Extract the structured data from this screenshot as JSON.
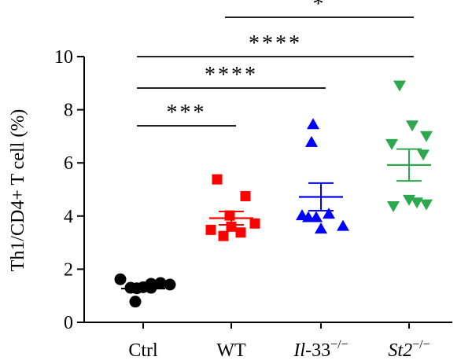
{
  "chart_data": {
    "type": "scatter",
    "ylabel": "Th1/CD4+ T cell (%)",
    "ylim": [
      0,
      10
    ],
    "yticks": [
      0,
      2,
      4,
      6,
      8,
      10
    ],
    "categories": [
      {
        "text": "Ctrl",
        "italic": "",
        "sup": ""
      },
      {
        "text": "WT",
        "italic": "",
        "sup": ""
      },
      {
        "text": "-33",
        "italic": "Il",
        "sup": "−/−"
      },
      {
        "text": "",
        "italic": "St2",
        "sup": "−/−"
      }
    ],
    "series": [
      {
        "color": "#000000",
        "marker": "circle",
        "mean": 1.27,
        "sem": 0.09,
        "values": [
          1.62,
          1.28,
          1.45,
          1.3,
          1.48,
          1.32,
          1.42,
          1.3,
          0.78
        ]
      },
      {
        "color": "#ff0000",
        "marker": "square",
        "mean": 3.92,
        "sem": 0.25,
        "values": [
          5.38,
          4.75,
          4.02,
          3.72,
          3.48,
          3.6,
          3.25,
          3.38
        ]
      },
      {
        "color": "#0000ff",
        "marker": "triangle-up",
        "mean": 4.72,
        "sem": 0.52,
        "values": [
          7.45,
          6.78,
          4.02,
          4.08,
          3.95,
          3.62,
          3.52,
          3.95
        ]
      },
      {
        "color": "#2ea84f",
        "marker": "triangle-down",
        "mean": 5.92,
        "sem": 0.6,
        "values": [
          8.92,
          7.42,
          7.02,
          6.72,
          6.32,
          4.62,
          4.38,
          4.45,
          4.52
        ]
      }
    ],
    "significance": [
      {
        "from": 0,
        "to": 1,
        "label": "***"
      },
      {
        "from": 0,
        "to": 2,
        "label": "****"
      },
      {
        "from": 0,
        "to": 3,
        "label": "****"
      },
      {
        "from": 1,
        "to": 3,
        "label": "*"
      }
    ]
  }
}
